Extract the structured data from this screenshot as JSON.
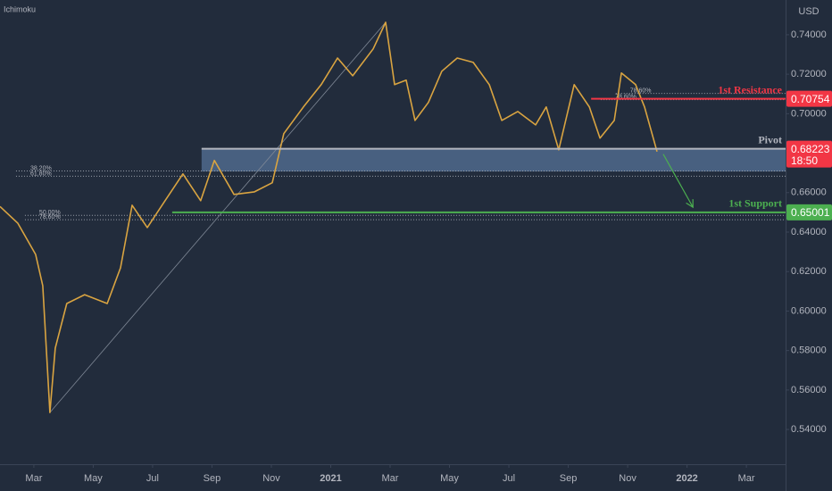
{
  "chart_data": {
    "type": "line",
    "title": "Ichimoku",
    "y_axis_label": "USD",
    "x": [
      -1.14,
      -0.54,
      0.06,
      0.3,
      0.54,
      0.72,
      1.11,
      1.71,
      2.47,
      2.92,
      3.31,
      3.82,
      4.42,
      5.02,
      5.62,
      6.08,
      6.74,
      7.43,
      8.03,
      8.42,
      9.08,
      9.68,
      10.23,
      10.74,
      11.43,
      11.85,
      12.15,
      12.54,
      12.84,
      13.29,
      13.74,
      14.26,
      14.8,
      15.34,
      15.76,
      16.3,
      16.9,
      17.26,
      17.68,
      18.2,
      18.71,
      19.07,
      19.55,
      19.79,
      20.27,
      20.57,
      20.99
    ],
    "series": [
      {
        "color": "#d9a441",
        "values": [
          0.653,
          0.6445,
          0.6287,
          0.6128,
          0.5486,
          0.5812,
          0.6038,
          0.6083,
          0.6038,
          0.6219,
          0.6536,
          0.6423,
          0.6559,
          0.6695,
          0.6559,
          0.6763,
          0.6591,
          0.6604,
          0.665,
          0.6899,
          0.7034,
          0.7147,
          0.7282,
          0.7192,
          0.7328,
          0.7463,
          0.7147,
          0.717,
          0.6966,
          0.7057,
          0.7215,
          0.7282,
          0.726,
          0.7147,
          0.6966,
          0.7011,
          0.6943,
          0.7034,
          0.6817,
          0.7147,
          0.7034,
          0.6876,
          0.6966,
          0.7206,
          0.7147,
          0.7034,
          0.6808
        ]
      }
    ],
    "xlim": [
      -1.14,
      25.32
    ],
    "ylim": [
      0.5224,
      0.7576
    ],
    "xticks": [
      {
        "value": 0,
        "label": "Mar"
      },
      {
        "value": 2,
        "label": "May"
      },
      {
        "value": 4,
        "label": "Jul"
      },
      {
        "value": 6,
        "label": "Sep"
      },
      {
        "value": 8,
        "label": "Nov"
      },
      {
        "value": 10,
        "label": "2021"
      },
      {
        "value": 12,
        "label": "Mar"
      },
      {
        "value": 14,
        "label": "May"
      },
      {
        "value": 16,
        "label": "Jul"
      },
      {
        "value": 18,
        "label": "Sep"
      },
      {
        "value": 20,
        "label": "Nov"
      },
      {
        "value": 22,
        "label": "2022"
      },
      {
        "value": 24,
        "label": "Mar"
      }
    ],
    "yticks": [
      {
        "value": 0.54,
        "label": "0.54000"
      },
      {
        "value": 0.56,
        "label": "0.56000"
      },
      {
        "value": 0.58,
        "label": "0.58000"
      },
      {
        "value": 0.6,
        "label": "0.60000"
      },
      {
        "value": 0.62,
        "label": "0.62000"
      },
      {
        "value": 0.64,
        "label": "0.64000"
      },
      {
        "value": 0.66,
        "label": "0.66000"
      },
      {
        "value": 0.7,
        "label": "0.70000"
      },
      {
        "value": 0.72,
        "label": "0.72000"
      },
      {
        "value": 0.74,
        "label": "0.74000"
      }
    ],
    "levels": [
      {
        "label": "1st Resistance",
        "value": 0.70754,
        "value_label": "0.70754",
        "color": "#f23645",
        "x_start": 18.77
      },
      {
        "label": "Pivot",
        "value": 0.68223,
        "zone_low": 0.6707,
        "color": "#b2b5be",
        "x_start": 5.65
      },
      {
        "label": "1st Support",
        "value": 0.65001,
        "value_label": "0.65001",
        "color": "#4caf50",
        "x_start": 4.66
      }
    ],
    "current_price": {
      "value": 0.68223,
      "label": "0.68223",
      "countdown": "18:50",
      "color": "#f23645"
    },
    "fib_levels": [
      {
        "label": "38.20%",
        "value": 0.671,
        "x_start": -0.6
      },
      {
        "label": "61.80%",
        "value": 0.6683,
        "x_start": -0.6
      },
      {
        "label": "50.00%",
        "value": 0.6485,
        "x_start": -0.3
      },
      {
        "label": "78.60%",
        "value": 0.6463,
        "x_start": -0.3
      },
      {
        "label": "78.60%",
        "value": 0.7103,
        "x_start": 19.6
      },
      {
        "label": "78.60%",
        "value": 0.7071,
        "x_start": 19.1
      }
    ],
    "trend_line": {
      "x": [
        0.54,
        11.85
      ],
      "values": [
        0.5486,
        0.7463
      ]
    },
    "projection": {
      "x": [
        21.2,
        22.2
      ],
      "values": [
        0.6795,
        0.6526
      ]
    }
  }
}
